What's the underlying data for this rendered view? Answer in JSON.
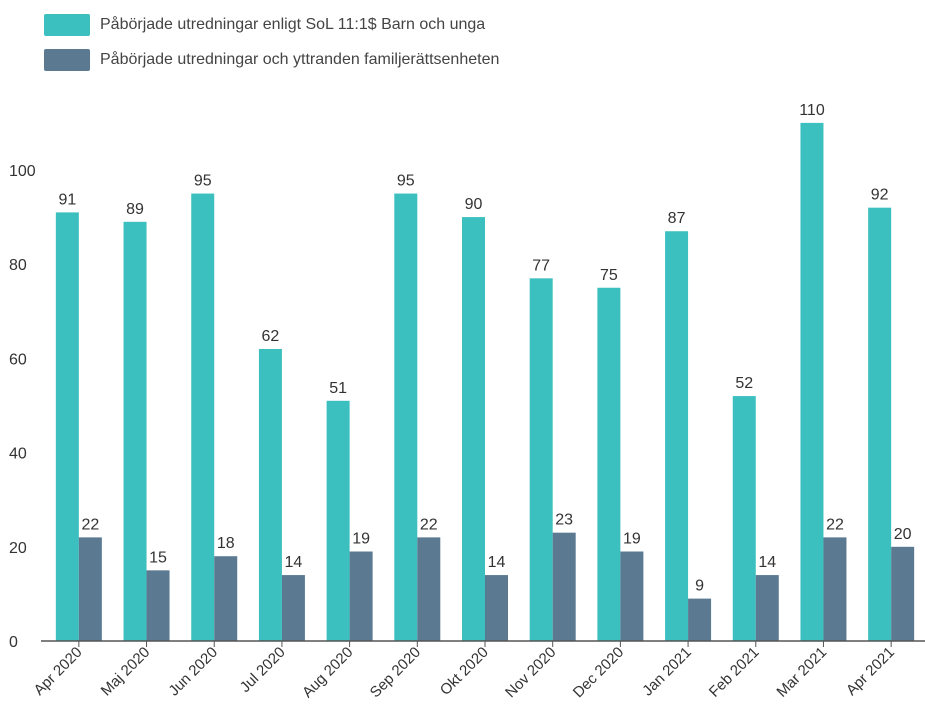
{
  "colors": {
    "series1": "#3bbfbf",
    "series2": "#5b7a92",
    "axis": "#555555",
    "text": "#333333"
  },
  "legend": [
    {
      "label": "Påbörjade utredningar enligt SoL 11:1$ Barn och unga"
    },
    {
      "label": "Påbörjade utredningar och yttranden familjerättsenheten"
    }
  ],
  "chart_data": {
    "type": "bar",
    "title": "",
    "xlabel": "",
    "ylabel": "",
    "ylim": [
      0,
      115
    ],
    "yticks": [
      0,
      20,
      40,
      60,
      80,
      100
    ],
    "grid": false,
    "legend_position": "top-left",
    "categories": [
      "Apr 2020",
      "Maj 2020",
      "Jun 2020",
      "Jul 2020",
      "Aug 2020",
      "Sep 2020",
      "Okt 2020",
      "Nov 2020",
      "Dec 2020",
      "Jan 2021",
      "Feb 2021",
      "Mar 2021",
      "Apr 2021"
    ],
    "series": [
      {
        "name": "Påbörjade utredningar enligt SoL 11:1$ Barn och unga",
        "values": [
          91,
          89,
          95,
          62,
          51,
          95,
          90,
          77,
          75,
          87,
          52,
          110,
          92
        ]
      },
      {
        "name": "Påbörjade utredningar och yttranden familjerättsenheten",
        "values": [
          22,
          15,
          18,
          14,
          19,
          22,
          14,
          23,
          19,
          9,
          14,
          22,
          20
        ]
      }
    ]
  }
}
